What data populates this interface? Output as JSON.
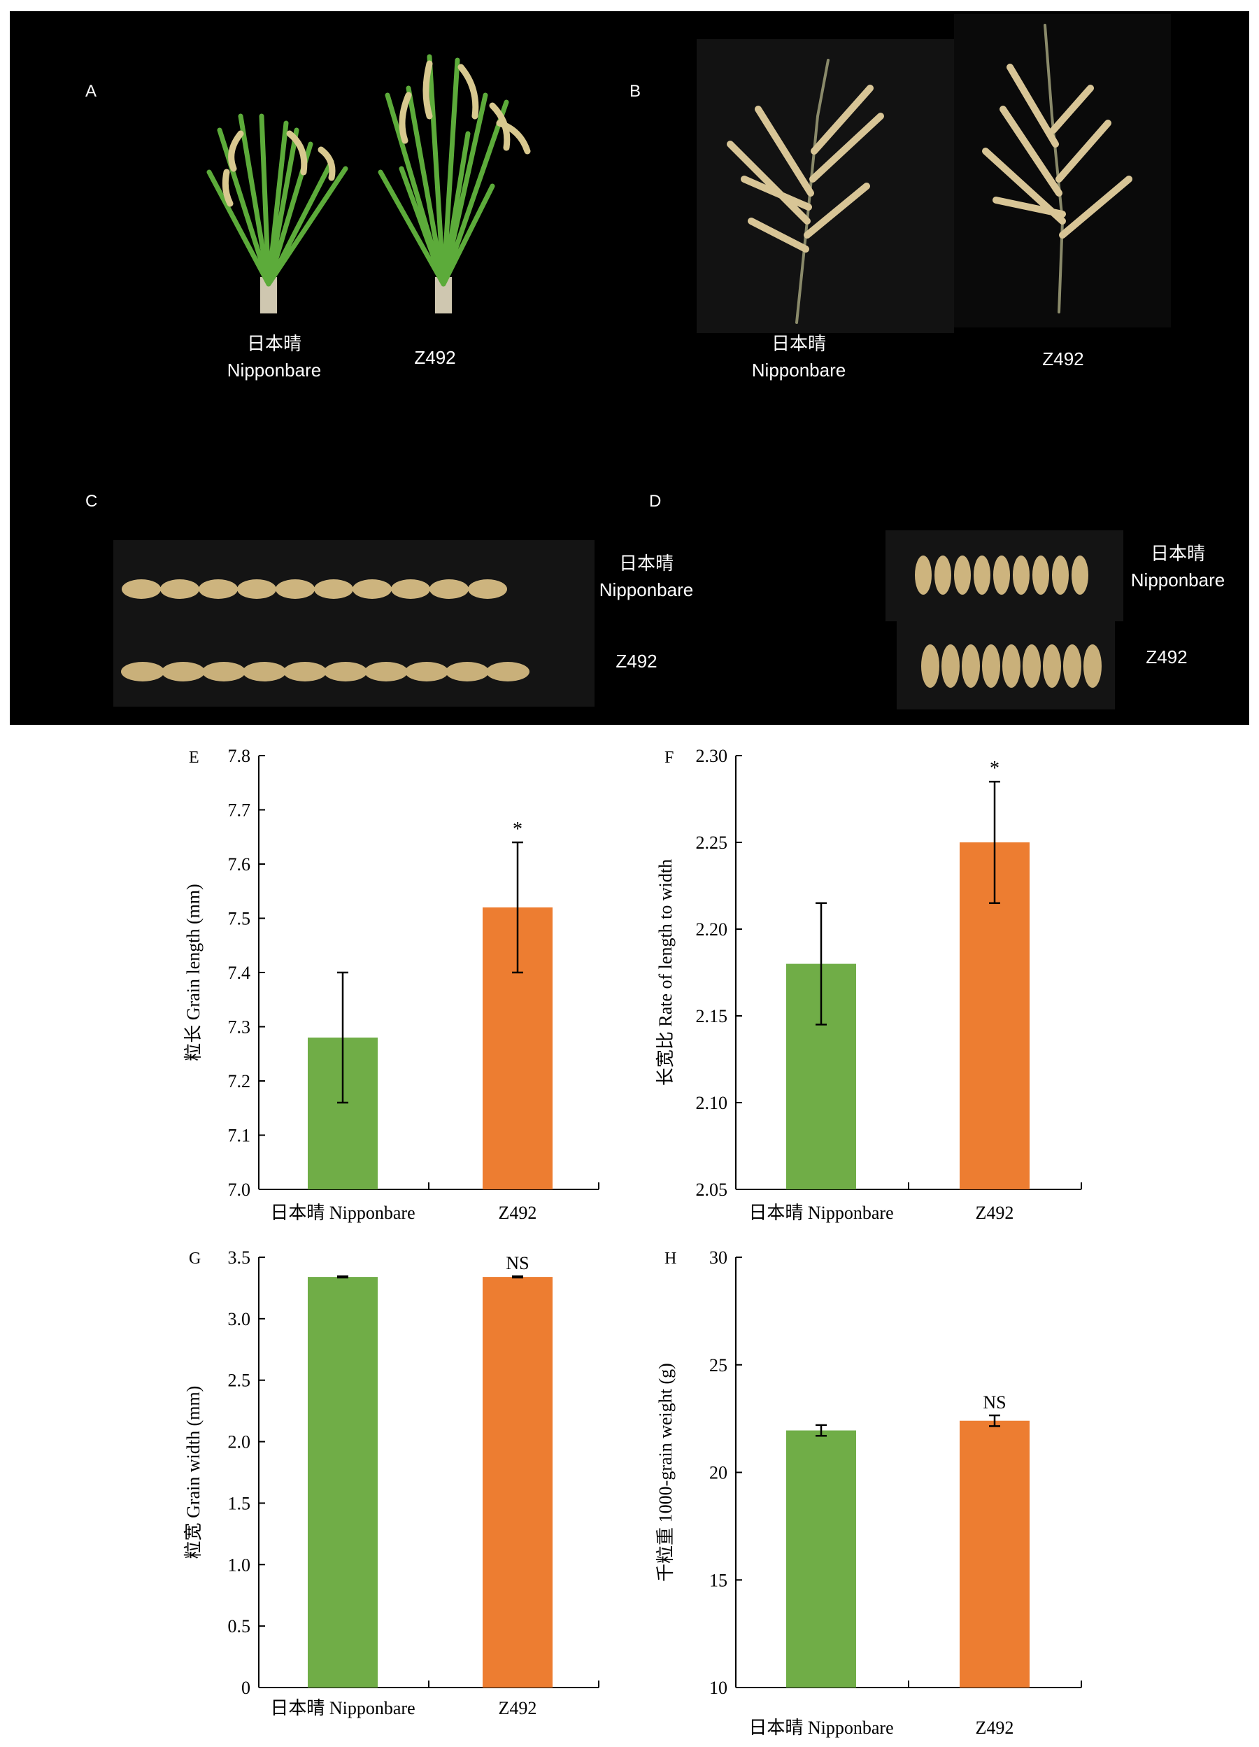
{
  "photo_panels": {
    "A": {
      "letter": "A",
      "label1_cn": "日本晴",
      "label1_en": "Nipponbare",
      "label2": "Z492"
    },
    "B": {
      "letter": "B",
      "label1_cn": "日本晴",
      "label1_en": "Nipponbare",
      "label2": "Z492"
    },
    "C": {
      "letter": "C",
      "label1_cn": "日本晴",
      "label1_en": "Nipponbare",
      "label2": "Z492"
    },
    "D": {
      "letter": "D",
      "label1_cn": "日本晴",
      "label1_en": "Nipponbare",
      "label2": "Z492"
    }
  },
  "colors": {
    "nipponbare": "#70ad47",
    "z492": "#ed7d31",
    "photo_bg": "#000000"
  },
  "chart_data": [
    {
      "panel": "E",
      "type": "bar",
      "categories": [
        "日本晴 Nipponbare",
        "Z492"
      ],
      "values": [
        7.28,
        7.52
      ],
      "errors": [
        0.12,
        0.12
      ],
      "significance": [
        "",
        "*"
      ],
      "ylabel": "粒长 Grain length (mm)",
      "ylim": [
        7.0,
        7.8
      ],
      "yticks": [
        "7.0",
        "7.1",
        "7.2",
        "7.3",
        "7.4",
        "7.5",
        "7.6",
        "7.7",
        "7.8"
      ]
    },
    {
      "panel": "F",
      "type": "bar",
      "categories": [
        "日本晴 Nipponbare",
        "Z492"
      ],
      "values": [
        2.18,
        2.25
      ],
      "errors": [
        0.035,
        0.035
      ],
      "significance": [
        "",
        "*"
      ],
      "ylabel": "长宽比 Rate of length to width",
      "ylim": [
        2.05,
        2.3
      ],
      "yticks": [
        "2.05",
        "2.10",
        "2.15",
        "2.20",
        "2.25",
        "2.30"
      ]
    },
    {
      "panel": "G",
      "type": "bar",
      "categories": [
        "日本晴 Nipponbare",
        "Z492"
      ],
      "values": [
        3.34,
        3.34
      ],
      "errors": [
        0.005,
        0.005
      ],
      "significance": [
        "",
        "NS"
      ],
      "ylabel": "粒宽 Grain width (mm)",
      "ylim": [
        0,
        3.5
      ],
      "yticks": [
        "0",
        "0.5",
        "1.0",
        "1.5",
        "2.0",
        "2.5",
        "3.0",
        "3.5"
      ]
    },
    {
      "panel": "H",
      "type": "bar",
      "categories": [
        "日本晴 Nipponbare",
        "Z492"
      ],
      "values": [
        21.95,
        22.4
      ],
      "errors": [
        0.25,
        0.25
      ],
      "significance": [
        "",
        "NS"
      ],
      "ylabel": "千粒重 1000-grain weight (g)",
      "ylim": [
        10,
        30
      ],
      "yticks": [
        "10",
        "15",
        "20",
        "25",
        "30"
      ]
    }
  ]
}
